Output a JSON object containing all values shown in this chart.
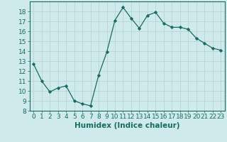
{
  "x": [
    0,
    1,
    2,
    3,
    4,
    5,
    6,
    7,
    8,
    9,
    10,
    11,
    12,
    13,
    14,
    15,
    16,
    17,
    18,
    19,
    20,
    21,
    22,
    23
  ],
  "y": [
    12.7,
    11.0,
    9.9,
    10.3,
    10.5,
    9.0,
    8.7,
    8.5,
    11.6,
    13.9,
    17.1,
    18.4,
    17.3,
    16.3,
    17.6,
    17.9,
    16.8,
    16.4,
    16.4,
    16.2,
    15.3,
    14.8,
    14.3,
    14.1
  ],
  "line_color": "#1a6b5e",
  "marker": "D",
  "marker_size": 2.2,
  "bg_color": "#ceeaea",
  "grid_color": "#b8d4d4",
  "xlabel": "Humidex (Indice chaleur)",
  "xlim": [
    -0.5,
    23.5
  ],
  "ylim": [
    8,
    19
  ],
  "yticks": [
    8,
    9,
    10,
    11,
    12,
    13,
    14,
    15,
    16,
    17,
    18
  ],
  "xticks": [
    0,
    1,
    2,
    3,
    4,
    5,
    6,
    7,
    8,
    9,
    10,
    11,
    12,
    13,
    14,
    15,
    16,
    17,
    18,
    19,
    20,
    21,
    22,
    23
  ],
  "tick_label_fontsize": 6.5,
  "xlabel_fontsize": 7.5
}
